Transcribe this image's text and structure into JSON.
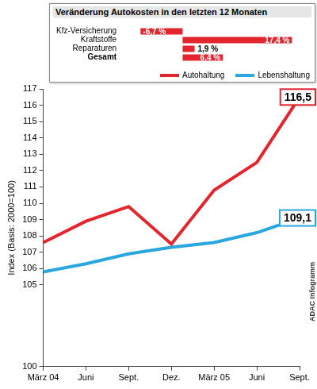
{
  "chart_data": [
    {
      "type": "line",
      "categories": [
        "März 04",
        "Juni",
        "Sept.",
        "Dez.",
        "März 05",
        "Juni",
        "Sept."
      ],
      "series": [
        {
          "name": "Autohaltung",
          "color": "#e3262e",
          "values": [
            107.6,
            108.9,
            109.8,
            107.5,
            110.8,
            112.5,
            116.5
          ],
          "value_labels": [
            null,
            null,
            null,
            null,
            null,
            null,
            "116,5"
          ]
        },
        {
          "name": "Lebenshaltung",
          "color": "#2aa7df",
          "values": [
            105.8,
            106.3,
            106.9,
            107.3,
            107.6,
            108.2,
            109.1
          ],
          "value_labels": [
            null,
            null,
            null,
            null,
            null,
            null,
            "109,1"
          ]
        }
      ],
      "y_label": "Index (Basis: 2000=100)",
      "ylim": [
        100,
        117
      ],
      "yticks": [
        100,
        105,
        106,
        107,
        108,
        109,
        110,
        111,
        112,
        113,
        114,
        115,
        116,
        117
      ],
      "grid": false,
      "legend": "top",
      "data_labels": true,
      "source": "ADAC Infogramm"
    },
    {
      "type": "bar",
      "orientation": "horizontal",
      "title": "Veränderung Autokosten in den letzten 12 Monaten",
      "categories": [
        "Kfz-Versicherung",
        "Kraftstoffe",
        "Reparaturen",
        "Gesamt"
      ],
      "values": [
        -6.7,
        17.4,
        1.9,
        6.4
      ],
      "value_labels": [
        "-6,7 %",
        "17,4 %",
        "1,9 %",
        "6,4 %"
      ],
      "color": "#e3262e",
      "xlim": [
        -10,
        20
      ],
      "grid": false,
      "data_labels": true,
      "tick_labels": "y"
    }
  ]
}
